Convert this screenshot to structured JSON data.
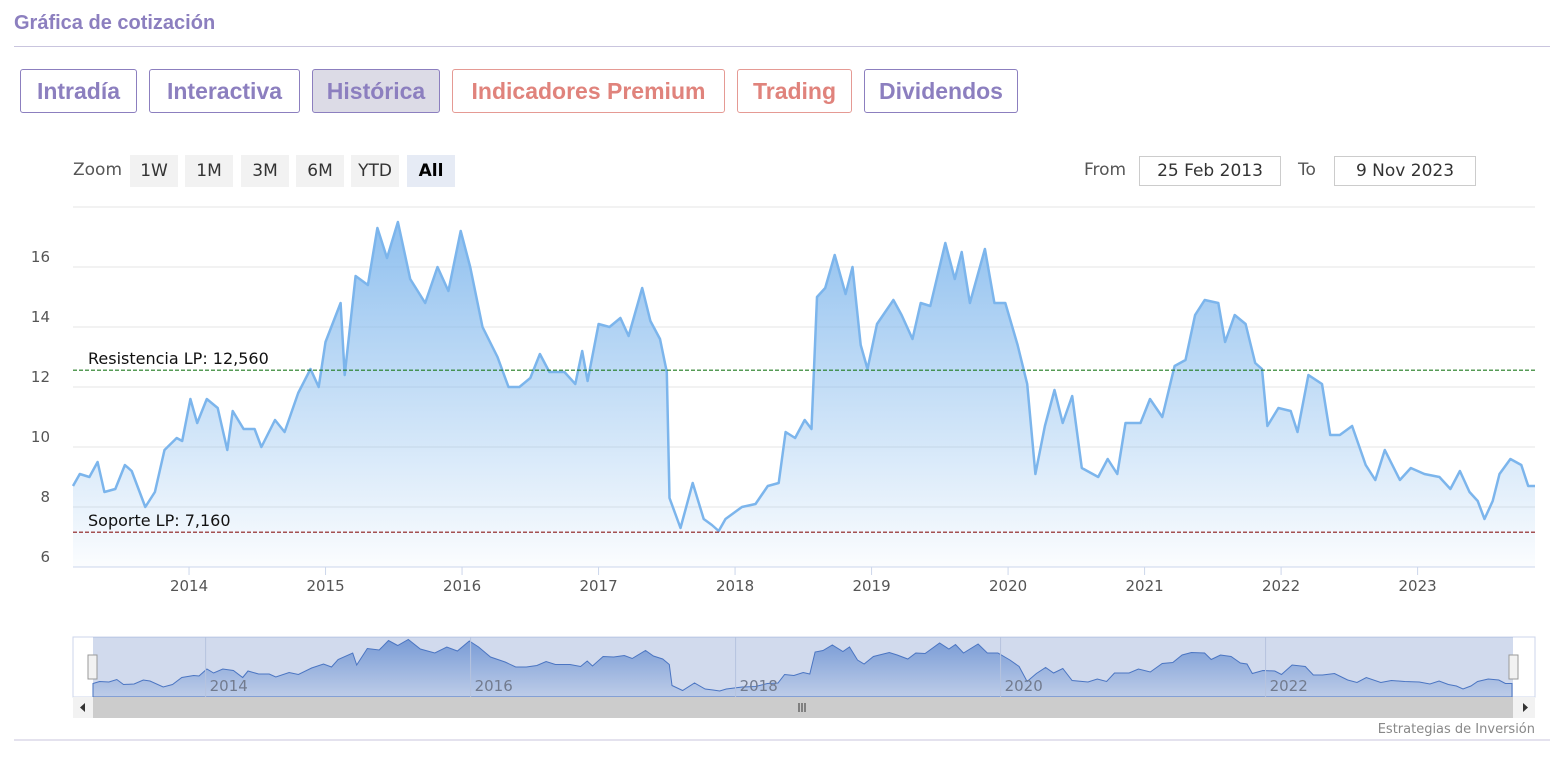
{
  "header": {
    "title": "Gráfica de cotización"
  },
  "tabs": [
    "Intradía",
    "Interactiva",
    "Histórica",
    "Indicadores Premium",
    "Trading",
    "Dividendos"
  ],
  "zoom": {
    "label": "Zoom",
    "buttons": [
      "1W",
      "1M",
      "3M",
      "6M",
      "YTD",
      "All"
    ]
  },
  "range": {
    "from_label": "From",
    "from": "25 Feb 2013",
    "to_label": "To",
    "to": "9 Nov 2023"
  },
  "credit": "Estrategias de Inversión",
  "chart_data": {
    "type": "area",
    "color": "#7cb5ec",
    "x": [
      2013.15,
      2013.2,
      2013.27,
      2013.33,
      2013.38,
      2013.46,
      2013.53,
      2013.58,
      2013.68,
      2013.75,
      2013.82,
      2013.91,
      2013.95,
      2014.01,
      2014.06,
      2014.13,
      2014.21,
      2014.28,
      2014.32,
      2014.4,
      2014.48,
      2014.53,
      2014.63,
      2014.7,
      2014.8,
      2014.89,
      2014.95,
      2015.0,
      2015.11,
      2015.14,
      2015.22,
      2015.31,
      2015.38,
      2015.45,
      2015.53,
      2015.62,
      2015.73,
      2015.82,
      2015.9,
      2015.99,
      2016.06,
      2016.15,
      2016.26,
      2016.34,
      2016.42,
      2016.5,
      2016.57,
      2016.64,
      2016.75,
      2016.83,
      2016.88,
      2016.92,
      2017.0,
      2017.08,
      2017.16,
      2017.22,
      2017.32,
      2017.38,
      2017.45,
      2017.5,
      2017.52,
      2017.6,
      2017.69,
      2017.77,
      2017.83,
      2017.88,
      2017.93,
      2018.05,
      2018.15,
      2018.24,
      2018.32,
      2018.37,
      2018.44,
      2018.51,
      2018.56,
      2018.6,
      2018.66,
      2018.73,
      2018.81,
      2018.86,
      2018.92,
      2018.97,
      2019.04,
      2019.1,
      2019.16,
      2019.22,
      2019.3,
      2019.36,
      2019.43,
      2019.54,
      2019.61,
      2019.66,
      2019.72,
      2019.83,
      2019.9,
      2019.98,
      2020.07,
      2020.14,
      2020.2,
      2020.27,
      2020.34,
      2020.4,
      2020.47,
      2020.54,
      2020.66,
      2020.73,
      2020.8,
      2020.86,
      2020.97,
      2021.04,
      2021.13,
      2021.22,
      2021.3,
      2021.37,
      2021.44,
      2021.54,
      2021.59,
      2021.66,
      2021.74,
      2021.81,
      2021.86,
      2021.9,
      2021.98,
      2022.07,
      2022.12,
      2022.2,
      2022.3,
      2022.36,
      2022.43,
      2022.52,
      2022.62,
      2022.69,
      2022.76,
      2022.87,
      2022.95,
      2023.05,
      2023.16,
      2023.24,
      2023.31,
      2023.38,
      2023.44,
      2023.49,
      2023.55,
      2023.6,
      2023.68,
      2023.76,
      2023.81,
      2023.86
    ],
    "values": [
      8.7,
      9.1,
      9.0,
      9.5,
      8.5,
      8.6,
      9.4,
      9.2,
      8.0,
      8.5,
      9.9,
      10.3,
      10.2,
      11.6,
      10.8,
      11.6,
      11.3,
      9.9,
      11.2,
      10.6,
      10.6,
      10.0,
      10.9,
      10.5,
      11.8,
      12.6,
      12.0,
      13.5,
      14.8,
      12.4,
      15.7,
      15.4,
      17.3,
      16.3,
      17.5,
      15.6,
      14.8,
      16.0,
      15.2,
      17.2,
      16.0,
      14.0,
      13.0,
      12.0,
      12.0,
      12.3,
      13.1,
      12.5,
      12.5,
      12.1,
      13.2,
      12.2,
      14.1,
      14.0,
      14.3,
      13.7,
      15.3,
      14.2,
      13.6,
      12.5,
      8.3,
      7.3,
      8.8,
      7.6,
      7.4,
      7.2,
      7.6,
      8.0,
      8.1,
      8.7,
      8.8,
      10.5,
      10.3,
      10.9,
      10.6,
      15.0,
      15.3,
      16.4,
      15.1,
      16.0,
      13.4,
      12.6,
      14.1,
      14.5,
      14.9,
      14.4,
      13.6,
      14.8,
      14.7,
      16.8,
      15.6,
      16.5,
      14.8,
      16.6,
      14.8,
      14.8,
      13.4,
      12.1,
      9.1,
      10.7,
      11.9,
      10.8,
      11.7,
      9.3,
      9.0,
      9.6,
      9.1,
      10.8,
      10.8,
      11.6,
      11.0,
      12.7,
      12.9,
      14.4,
      14.9,
      14.8,
      13.5,
      14.4,
      14.1,
      12.8,
      12.6,
      10.7,
      11.3,
      11.2,
      10.5,
      12.4,
      12.1,
      10.4,
      10.4,
      10.7,
      9.4,
      8.9,
      9.9,
      8.9,
      9.3,
      9.1,
      9.0,
      8.6,
      9.2,
      8.5,
      8.2,
      7.6,
      8.2,
      9.1,
      9.6,
      9.4,
      8.7,
      8.7
    ],
    "xlim": [
      2013.15,
      2023.86
    ],
    "xticks": [
      2014,
      2015,
      2016,
      2017,
      2018,
      2019,
      2020,
      2021,
      2022,
      2023
    ],
    "ylim": [
      6,
      18
    ],
    "yticks": [
      6,
      8,
      10,
      12,
      14,
      16
    ],
    "grid": true,
    "plot_lines": [
      {
        "value": 12.56,
        "label": "Resistencia LP: 12,560",
        "color": "#1e7a1e"
      },
      {
        "value": 7.16,
        "label": "Soporte LP: 7,160",
        "color": "#8b1a1a"
      }
    ],
    "navigator_ticks": [
      2014,
      2016,
      2018,
      2020,
      2022
    ]
  }
}
